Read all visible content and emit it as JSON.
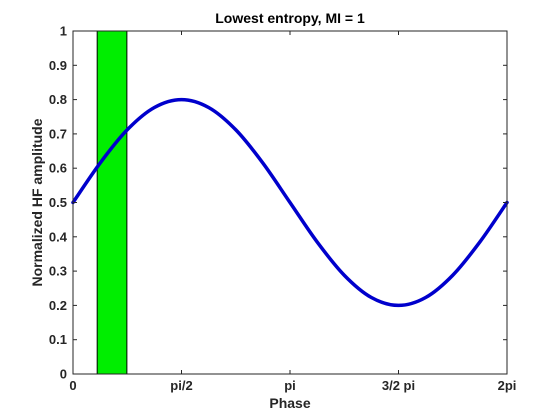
{
  "chart_data": {
    "type": "line",
    "title": "Lowest entropy, MI = 1",
    "xlabel": "Phase",
    "ylabel": "Normalized HF amplitude",
    "xlim": [
      0,
      6.283185307
    ],
    "ylim": [
      0,
      1
    ],
    "xticks": [
      0,
      1.570796327,
      3.141592654,
      4.71238898,
      6.283185307
    ],
    "xtick_labels": [
      "0",
      "pi/2",
      "pi",
      "3/2 pi",
      "2pi"
    ],
    "yticks": [
      0,
      0.1,
      0.2,
      0.3,
      0.4,
      0.5,
      0.6,
      0.7,
      0.8,
      0.9,
      1
    ],
    "ytick_labels": [
      "0",
      "0.1",
      "0.2",
      "0.3",
      "0.4",
      "0.5",
      "0.6",
      "0.7",
      "0.8",
      "0.9",
      "1"
    ],
    "series": [
      {
        "color": "#0000cc",
        "x": [
          0,
          0.3927,
          0.7854,
          1.1781,
          1.5708,
          1.9635,
          2.3562,
          2.7489,
          3.1416,
          3.5343,
          3.927,
          4.3197,
          4.7124,
          5.1051,
          5.4978,
          5.8905,
          6.2832
        ],
        "y": [
          0.5,
          0.615,
          0.712,
          0.777,
          0.8,
          0.777,
          0.712,
          0.615,
          0.5,
          0.385,
          0.288,
          0.223,
          0.2,
          0.223,
          0.288,
          0.385,
          0.5
        ]
      }
    ],
    "highlight_band": {
      "x0": 0.35,
      "x1": 0.78,
      "color": "#00ee00"
    },
    "grid": false,
    "box": true
  }
}
